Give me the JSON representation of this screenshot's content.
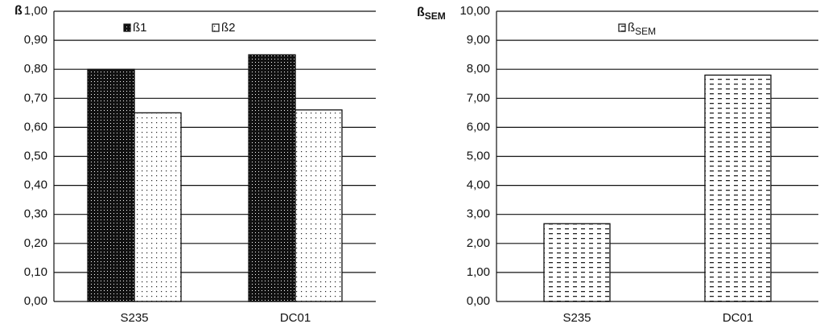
{
  "chart_data": [
    {
      "type": "bar",
      "y_label": "ß",
      "categories": [
        "S235",
        "DC01"
      ],
      "series": [
        {
          "name": "ß1",
          "color": "#111111",
          "fill": "dots-dark",
          "values": [
            0.8,
            0.85
          ]
        },
        {
          "name": "ß2",
          "color": "#ffffff",
          "fill": "dots-light",
          "values": [
            0.65,
            0.66
          ]
        }
      ],
      "ylim": [
        0,
        1
      ],
      "yticks": [
        {
          "value": 0,
          "label": "0,00"
        },
        {
          "value": 0.1,
          "label": "0,10"
        },
        {
          "value": 0.2,
          "label": "0,20"
        },
        {
          "value": 0.3,
          "label": "0,30"
        },
        {
          "value": 0.4,
          "label": "0,40"
        },
        {
          "value": 0.5,
          "label": "0,50"
        },
        {
          "value": 0.6,
          "label": "0,60"
        },
        {
          "value": 0.7,
          "label": "0,70"
        },
        {
          "value": 0.8,
          "label": "0,80"
        },
        {
          "value": 0.9,
          "label": "0,90"
        },
        {
          "value": 1,
          "label": "1,00"
        }
      ],
      "grid": true
    },
    {
      "type": "bar",
      "y_label": "ß",
      "y_label_subscript": "SEM",
      "categories": [
        "S235",
        "DC01"
      ],
      "series": [
        {
          "name": "ß",
          "name_subscript": "SEM",
          "color": "#ffffff",
          "fill": "dashes",
          "values": [
            2.68,
            7.8
          ]
        }
      ],
      "ylim": [
        0,
        10
      ],
      "yticks": [
        {
          "value": 0,
          "label": "0,00"
        },
        {
          "value": 1,
          "label": "1,00"
        },
        {
          "value": 2,
          "label": "2,00"
        },
        {
          "value": 3,
          "label": "3,00"
        },
        {
          "value": 4,
          "label": "4,00"
        },
        {
          "value": 5,
          "label": "5,00"
        },
        {
          "value": 6,
          "label": "6,00"
        },
        {
          "value": 7,
          "label": "7,00"
        },
        {
          "value": 8,
          "label": "8,00"
        },
        {
          "value": 9,
          "label": "9,00"
        },
        {
          "value": 10,
          "label": "10,00"
        }
      ],
      "grid": true
    }
  ]
}
